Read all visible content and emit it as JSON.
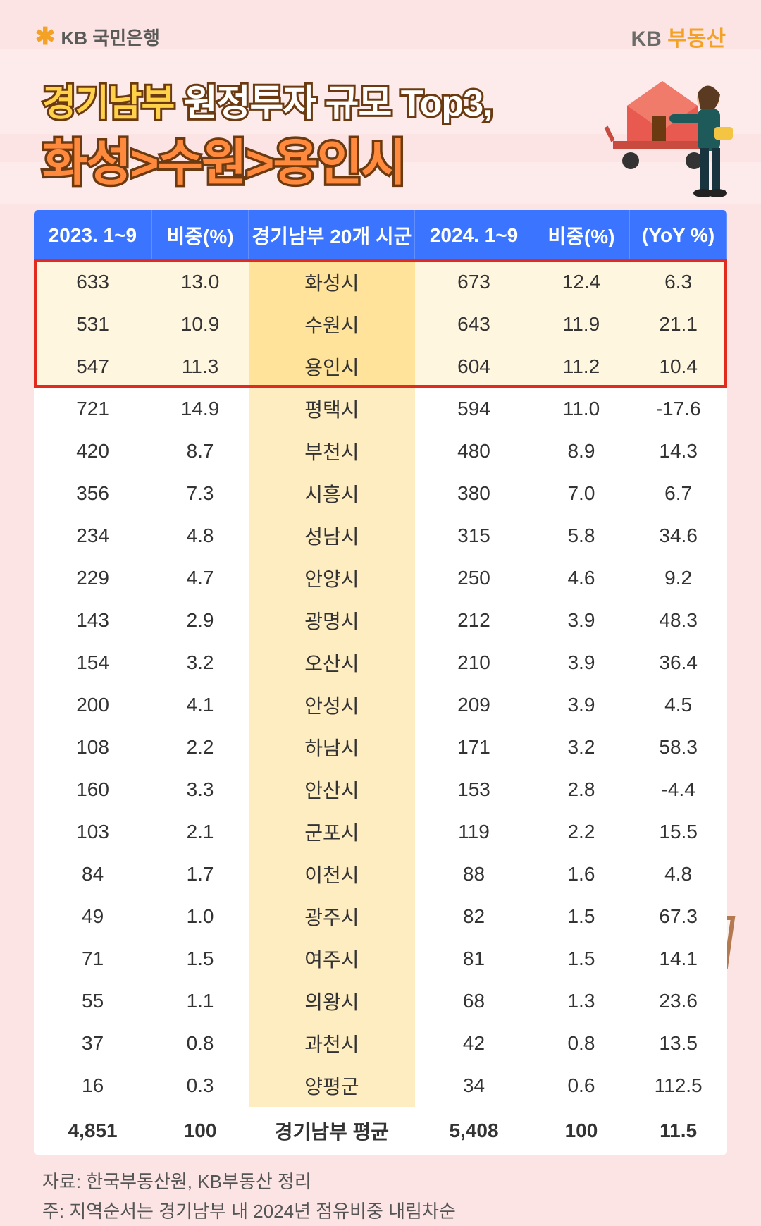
{
  "header": {
    "logo_left_icon": "✱",
    "logo_left_text": "KB 국민은행",
    "logo_right_kb": "KB",
    "logo_right_rest": " 부동산"
  },
  "title": {
    "line1_a": "경기남부",
    "line1_b": " 원정투자 규모 Top3,",
    "line2": "화성>수원>용인시"
  },
  "table": {
    "columns": [
      "2023. 1~9",
      "비중(%)",
      "경기남부 20개 시군",
      "2024. 1~9",
      "비중(%)",
      "(YoY %)"
    ],
    "col_widths_pct": [
      17,
      14,
      24,
      17,
      14,
      14
    ],
    "header_bg": "#3a74ff",
    "header_color": "#ffffff",
    "region_col_bg": "#ffedc2",
    "region_col_bg_top": "#ffe39a",
    "top_row_bg": "#fff6e0",
    "highlight_border": "#e22b1f",
    "top_count": 3,
    "rows": [
      {
        "v2023": "633",
        "p2023": "13.0",
        "region": "화성시",
        "v2024": "673",
        "p2024": "12.4",
        "yoy": "6.3"
      },
      {
        "v2023": "531",
        "p2023": "10.9",
        "region": "수원시",
        "v2024": "643",
        "p2024": "11.9",
        "yoy": "21.1"
      },
      {
        "v2023": "547",
        "p2023": "11.3",
        "region": "용인시",
        "v2024": "604",
        "p2024": "11.2",
        "yoy": "10.4"
      },
      {
        "v2023": "721",
        "p2023": "14.9",
        "region": "평택시",
        "v2024": "594",
        "p2024": "11.0",
        "yoy": "-17.6"
      },
      {
        "v2023": "420",
        "p2023": "8.7",
        "region": "부천시",
        "v2024": "480",
        "p2024": "8.9",
        "yoy": "14.3"
      },
      {
        "v2023": "356",
        "p2023": "7.3",
        "region": "시흥시",
        "v2024": "380",
        "p2024": "7.0",
        "yoy": "6.7"
      },
      {
        "v2023": "234",
        "p2023": "4.8",
        "region": "성남시",
        "v2024": "315",
        "p2024": "5.8",
        "yoy": "34.6"
      },
      {
        "v2023": "229",
        "p2023": "4.7",
        "region": "안양시",
        "v2024": "250",
        "p2024": "4.6",
        "yoy": "9.2"
      },
      {
        "v2023": "143",
        "p2023": "2.9",
        "region": "광명시",
        "v2024": "212",
        "p2024": "3.9",
        "yoy": "48.3"
      },
      {
        "v2023": "154",
        "p2023": "3.2",
        "region": "오산시",
        "v2024": "210",
        "p2024": "3.9",
        "yoy": "36.4"
      },
      {
        "v2023": "200",
        "p2023": "4.1",
        "region": "안성시",
        "v2024": "209",
        "p2024": "3.9",
        "yoy": "4.5"
      },
      {
        "v2023": "108",
        "p2023": "2.2",
        "region": "하남시",
        "v2024": "171",
        "p2024": "3.2",
        "yoy": "58.3"
      },
      {
        "v2023": "160",
        "p2023": "3.3",
        "region": "안산시",
        "v2024": "153",
        "p2024": "2.8",
        "yoy": "-4.4"
      },
      {
        "v2023": "103",
        "p2023": "2.1",
        "region": "군포시",
        "v2024": "119",
        "p2024": "2.2",
        "yoy": "15.5"
      },
      {
        "v2023": "84",
        "p2023": "1.7",
        "region": "이천시",
        "v2024": "88",
        "p2024": "1.6",
        "yoy": "4.8"
      },
      {
        "v2023": "49",
        "p2023": "1.0",
        "region": "광주시",
        "v2024": "82",
        "p2024": "1.5",
        "yoy": "67.3"
      },
      {
        "v2023": "71",
        "p2023": "1.5",
        "region": "여주시",
        "v2024": "81",
        "p2024": "1.5",
        "yoy": "14.1"
      },
      {
        "v2023": "55",
        "p2023": "1.1",
        "region": "의왕시",
        "v2024": "68",
        "p2024": "1.3",
        "yoy": "23.6"
      },
      {
        "v2023": "37",
        "p2023": "0.8",
        "region": "과천시",
        "v2024": "42",
        "p2024": "0.8",
        "yoy": "13.5"
      },
      {
        "v2023": "16",
        "p2023": "0.3",
        "region": "양평군",
        "v2024": "34",
        "p2024": "0.6",
        "yoy": "112.5"
      }
    ],
    "total": {
      "v2023": "4,851",
      "p2023": "100",
      "region": "경기남부 평균",
      "v2024": "5,408",
      "p2024": "100",
      "yoy": "11.5"
    }
  },
  "footnotes": {
    "line1": "자료: 한국부동산원, KB부동산 정리",
    "line2": "주: 지역순서는 경기남부 내 2024년 점유비중 내림차순"
  },
  "colors": {
    "page_bg": "#fce4e4",
    "title_fill_white": "#ffffff",
    "title_fill_yellow": "#ffd24a",
    "title_fill_orange": "#ff8a3d",
    "title_stroke": "#6b3a10"
  }
}
